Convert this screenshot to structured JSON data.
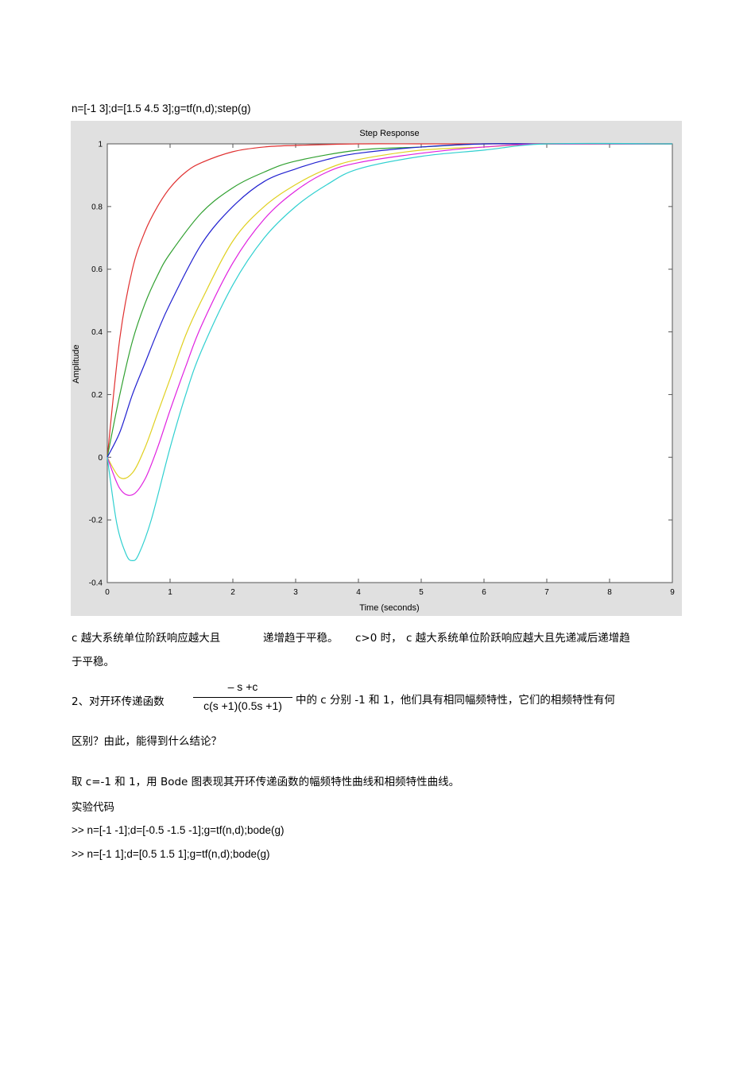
{
  "code_line_1": "n=[-1 3];d=[1.5 4.5 3];g=tf(n,d);step(g)",
  "chart_data": {
    "type": "line",
    "title": "Step Response",
    "xlabel": "Time (seconds)",
    "ylabel": "Amplitude",
    "xlim": [
      0,
      9
    ],
    "ylim": [
      -0.4,
      1
    ],
    "xticks": [
      "0",
      "1",
      "2",
      "3",
      "4",
      "5",
      "6",
      "7",
      "8",
      "9"
    ],
    "yticks": [
      "-0.4",
      "-0.2",
      "0",
      "0.2",
      "0.4",
      "0.6",
      "0.8",
      "1"
    ],
    "grid": false,
    "legend": "none",
    "series": [
      {
        "color": "#e03030",
        "x": [
          0,
          0.2,
          0.4,
          0.6,
          0.8,
          1,
          1.25,
          1.5,
          2,
          2.5,
          3,
          4,
          5,
          6,
          9
        ],
        "y": [
          0,
          0.38,
          0.6,
          0.72,
          0.8,
          0.86,
          0.91,
          0.94,
          0.975,
          0.99,
          0.995,
          1,
          1,
          1,
          1
        ]
      },
      {
        "color": "#30a030",
        "x": [
          0,
          0.2,
          0.4,
          0.6,
          0.8,
          1,
          1.5,
          2,
          2.5,
          3,
          4,
          5,
          6,
          7,
          9
        ],
        "y": [
          0,
          0.2,
          0.37,
          0.49,
          0.58,
          0.65,
          0.78,
          0.86,
          0.91,
          0.945,
          0.98,
          0.99,
          1,
          1,
          1
        ]
      },
      {
        "color": "#2020d0",
        "x": [
          0,
          0.2,
          0.4,
          0.6,
          0.8,
          1,
          1.5,
          2,
          2.5,
          3,
          3.5,
          4,
          5,
          6,
          7,
          9
        ],
        "y": [
          0,
          0.08,
          0.2,
          0.3,
          0.4,
          0.49,
          0.68,
          0.8,
          0.88,
          0.92,
          0.95,
          0.97,
          0.99,
          1,
          1,
          1
        ]
      },
      {
        "color": "#e0d020",
        "x": [
          0,
          0.2,
          0.4,
          0.6,
          0.8,
          1,
          1.25,
          1.5,
          2,
          2.5,
          3,
          3.5,
          4,
          5,
          6,
          7,
          9
        ],
        "y": [
          0,
          -0.065,
          -0.05,
          0.03,
          0.14,
          0.25,
          0.39,
          0.5,
          0.69,
          0.8,
          0.87,
          0.92,
          0.95,
          0.98,
          0.99,
          1,
          1
        ]
      },
      {
        "color": "#e020e0",
        "x": [
          0,
          0.2,
          0.4,
          0.6,
          0.8,
          1,
          1.25,
          1.5,
          2,
          2.5,
          3,
          3.5,
          4,
          5,
          6,
          7,
          9
        ],
        "y": [
          0,
          -0.1,
          -0.12,
          -0.07,
          0.03,
          0.15,
          0.29,
          0.42,
          0.62,
          0.76,
          0.85,
          0.91,
          0.94,
          0.97,
          0.99,
          1,
          1
        ]
      },
      {
        "color": "#30d0d0",
        "x": [
          0,
          0.15,
          0.3,
          0.4,
          0.5,
          0.7,
          1,
          1.25,
          1.5,
          2,
          2.5,
          3,
          3.5,
          4,
          5,
          6,
          7,
          9
        ],
        "y": [
          0,
          -0.21,
          -0.31,
          -0.33,
          -0.31,
          -0.2,
          0.03,
          0.2,
          0.34,
          0.55,
          0.7,
          0.8,
          0.87,
          0.92,
          0.96,
          0.98,
          1,
          1
        ]
      }
    ]
  },
  "para1_a": "c 越大系统单位阶跃响应越大且",
  "para1_b": "递增趋于平稳。",
  "para1_c": "c>0 时，",
  "para1_d": "c 越大系统单位阶跃响应越大且先递减后递增趋",
  "para1_e": "于平稳。",
  "q2_lead": "2、对开环传递函数",
  "q2_num": "– s +c",
  "q2_den": "c(s +1)(0.5s +1)",
  "q2_rest": "中的  c 分别 -1  和  1，他们具有相同幅频特性，它们的相频特性有何",
  "q2_line2": "区别？由此，能得到什么结论？",
  "answer_line": "取 c=-1 和 1，用 Bode 图表现其开环传递函数的幅频特性曲线和相频特性曲线。",
  "code_heading": "实验代码",
  "code_line_2": ">> n=[-1 -1];d=[-0.5 -1.5 -1];g=tf(n,d);bode(g)",
  "code_line_3": ">> n=[-1 1];d=[0.5 1.5 1];g=tf(n,d);bode(g)"
}
